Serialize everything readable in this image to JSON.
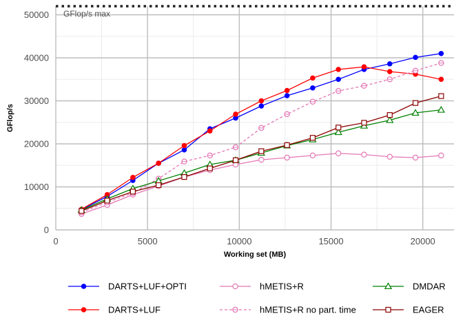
{
  "chart_data": {
    "type": "line",
    "xlabel": "Working set (MB)",
    "ylabel": "GFlop/s",
    "xlim": [
      0,
      21700
    ],
    "ylim": [
      0,
      52000
    ],
    "x_ticks": [
      0,
      5000,
      10000,
      15000,
      20000
    ],
    "x_tick_labels": [
      "0",
      "5000",
      "10000",
      "15000",
      "20000"
    ],
    "y_ticks": [
      0,
      10000,
      20000,
      30000,
      40000,
      50000
    ],
    "y_tick_labels": [
      "0",
      "10000",
      "20000",
      "30000",
      "40000",
      "50000"
    ],
    "grid": true,
    "legend_position": "bottom",
    "reference_line": {
      "label": "GFlop/s max",
      "y": 52000
    },
    "x": [
      1400,
      2800,
      4200,
      5600,
      7000,
      8400,
      9800,
      11200,
      12600,
      14000,
      15400,
      16800,
      18200,
      19600,
      21000
    ],
    "series": [
      {
        "name": "DARTS+LUF+OPTI",
        "color": "#0000ff",
        "marker": "filled-circle",
        "dashed": false,
        "values": [
          4700,
          7800,
          11500,
          15500,
          18600,
          23500,
          26000,
          28800,
          31200,
          33000,
          35000,
          37300,
          38600,
          40100,
          41000
        ]
      },
      {
        "name": "DARTS+LUF",
        "color": "#ff0000",
        "marker": "filled-circle",
        "dashed": false,
        "values": [
          4800,
          8200,
          12200,
          15500,
          19600,
          23000,
          26900,
          30000,
          32400,
          35300,
          37300,
          37900,
          36800,
          36200,
          35000
        ]
      },
      {
        "name": "hMETIS+R",
        "color": "#e377b5",
        "marker": "open-circle",
        "dashed": false,
        "values": [
          3700,
          5800,
          8200,
          10200,
          12300,
          13900,
          15200,
          16300,
          16800,
          17300,
          17800,
          17500,
          17000,
          16800,
          17300
        ]
      },
      {
        "name": "hMETIS+R no part. time",
        "color": "#e377b5",
        "marker": "crossed-circle",
        "dashed": true,
        "values": [
          4100,
          6400,
          8600,
          11900,
          15900,
          17300,
          19200,
          23700,
          26900,
          29800,
          32300,
          33500,
          35000,
          37000,
          38800
        ]
      },
      {
        "name": "DMDAR",
        "color": "#008000",
        "marker": "open-triangle",
        "dashed": false,
        "values": [
          4600,
          7200,
          9600,
          11400,
          13200,
          15200,
          16200,
          17900,
          19600,
          21000,
          22700,
          24200,
          25500,
          27200,
          27900
        ]
      },
      {
        "name": "EAGER",
        "color": "#8b0000",
        "marker": "open-square",
        "dashed": false,
        "values": [
          4400,
          6800,
          8900,
          10400,
          12300,
          14300,
          16200,
          18300,
          19700,
          21400,
          23800,
          24900,
          26700,
          29500,
          31100
        ]
      }
    ]
  }
}
